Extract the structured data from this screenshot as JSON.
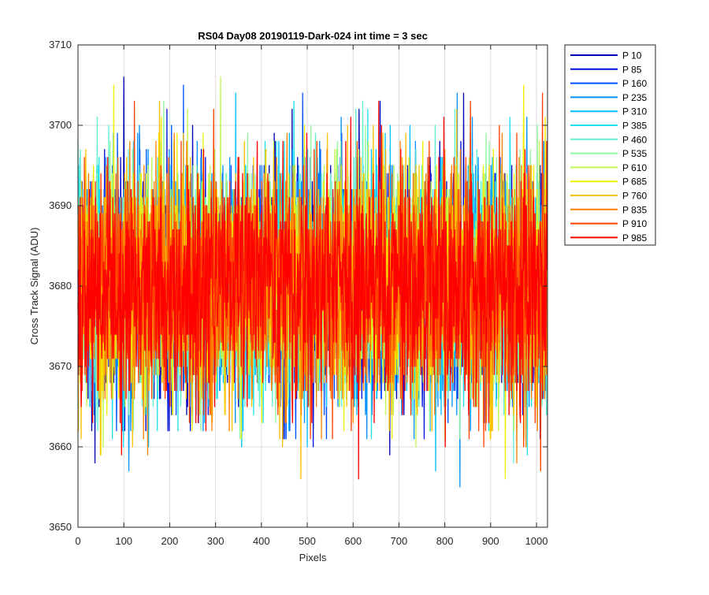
{
  "chart_data": {
    "type": "line",
    "title": "RS04 Day08 20190119-Dark-024 int time = 3 sec",
    "xlabel": "Pixels",
    "ylabel": "Cross Track Signal (ADU)",
    "xlim": [
      0,
      1024
    ],
    "ylim": [
      3650,
      3710
    ],
    "xticks": [
      0,
      100,
      200,
      300,
      400,
      500,
      600,
      700,
      800,
      900,
      1000
    ],
    "yticks": [
      3650,
      3660,
      3670,
      3680,
      3690,
      3700,
      3710
    ],
    "grid": true,
    "legend_position": "outside-top-right",
    "n_points_per_series": 1024,
    "approximate_stats": {
      "mean": 3680,
      "std": 7,
      "min": 3651,
      "max": 3709
    },
    "series": [
      {
        "name": "P 10",
        "color": "#0000b3"
      },
      {
        "name": "P 85",
        "color": "#0010d9"
      },
      {
        "name": "P 160",
        "color": "#0050ff"
      },
      {
        "name": "P 235",
        "color": "#0090ff"
      },
      {
        "name": "P 310",
        "color": "#00c0ff"
      },
      {
        "name": "P 385",
        "color": "#20e0f0"
      },
      {
        "name": "P 460",
        "color": "#60f0d0"
      },
      {
        "name": "P 535",
        "color": "#90f8a0"
      },
      {
        "name": "P 610",
        "color": "#c0f850"
      },
      {
        "name": "P 685",
        "color": "#f0f000"
      },
      {
        "name": "P 760",
        "color": "#ffc000"
      },
      {
        "name": "P 835",
        "color": "#ff8000"
      },
      {
        "name": "P 910",
        "color": "#ff4000"
      },
      {
        "name": "P 985",
        "color": "#ff0000"
      }
    ]
  }
}
